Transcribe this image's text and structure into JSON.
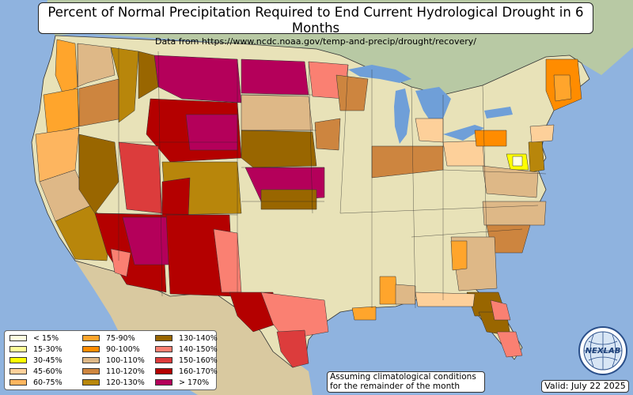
{
  "title": "Percent of Normal Precipitation Required to End Current Hydrological Drought in 6 Months",
  "subtitle": "Data from https://www.ncdc.noaa.gov/temp-and-precip/drought/recovery/",
  "legend": [
    {
      "label": "< 15%",
      "color": "#ffffe0"
    },
    {
      "label": "15-30%",
      "color": "#ffff99"
    },
    {
      "label": "30-45%",
      "color": "#ffff00"
    },
    {
      "label": "45-60%",
      "color": "#fdd09a"
    },
    {
      "label": "60-75%",
      "color": "#fdb55f"
    },
    {
      "label": "75-90%",
      "color": "#ffa52c"
    },
    {
      "label": "90-100%",
      "color": "#ff8c00"
    },
    {
      "label": "100-110%",
      "color": "#deb887"
    },
    {
      "label": "110-120%",
      "color": "#cd853f"
    },
    {
      "label": "120-130%",
      "color": "#b8860b"
    },
    {
      "label": "130-140%",
      "color": "#996600"
    },
    {
      "label": "140-150%",
      "color": "#fa8072"
    },
    {
      "label": "150-160%",
      "color": "#dc3c3c"
    },
    {
      "label": "160-170%",
      "color": "#b40000"
    },
    {
      "label": "> 170%",
      "color": "#b4005a"
    }
  ],
  "note_line1": "Assuming climatological conditions",
  "note_line2": "for the remainder of the month",
  "valid": "Valid: July 22 2025",
  "logo": {
    "text": "NEXLAB"
  },
  "colors": {
    "ocean": "#8fb3df",
    "land": "#e8e2b8",
    "lakes": "#6f9fd8",
    "canada": "#b8c9a4",
    "mexico": "#d9c9a0"
  }
}
